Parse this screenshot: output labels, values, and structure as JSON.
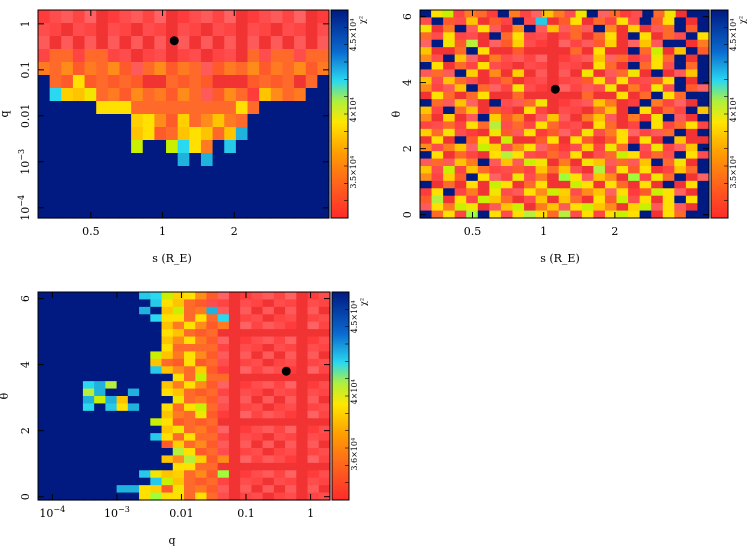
{
  "chart_data": [
    {
      "type": "heatmap",
      "id": "s-q",
      "title": "",
      "xlabel": "s (R_E)",
      "ylabel": "q",
      "xscale": "log",
      "yscale": "log",
      "xlim": [
        0.3,
        5.0
      ],
      "ylim": [
        6e-05,
        2.0
      ],
      "xticks": [
        {
          "value": 0.5,
          "label": "0.5"
        },
        {
          "value": 1,
          "label": "1"
        },
        {
          "value": 2,
          "label": "2"
        }
      ],
      "yticks": [
        {
          "value": 0.0001,
          "base": "10",
          "exp": "−4"
        },
        {
          "value": 0.001,
          "base": "10",
          "exp": "−3"
        },
        {
          "value": 0.01,
          "label": "0.01"
        },
        {
          "value": 0.1,
          "label": "0.1"
        },
        {
          "value": 1,
          "label": "1"
        }
      ],
      "best_fit": {
        "x": 1.12,
        "y": 0.43
      },
      "colorbar": {
        "label": "χ²",
        "ticks": [
          "3.5×10⁴",
          "4×10⁴",
          "4.5×10⁴"
        ]
      },
      "grid_rows_top_to_bottom": [
        "RRRRRRRRRRRRRRRRRRRRRRRRR",
        "RRRRRRRRRRRRRRRRRRRRRRRRR",
        "RRRRRRRRRRRRRRRRRRRRRRRRR",
        "ROOROORRRRRRRRRRRROROOROO",
        "OOOOOOOOROOOOOROOOOOOOOOO",
        "BOOYOOOOORROOOORRROOOOROB",
        "BCYYYOOOOOOOOOROOORYOOOBB",
        "BBBBBYYYOOOOOOOOOYOBBBBBB",
        "BBBBBBBBYYOOYOOYOOBBBBBBB",
        "BBBBBBBBYYOOYYYOYCBBBBBBB",
        "BBBBBBBBGBBGCYOBCBBBBBBBB",
        "BBBBBBBBBBBBCBCBBBBBBBBBB",
        "BBBBBBBBBBBBBBBBBBBBBBBBB",
        "BBBBBBBBBBBBBBBBBBBBBBBBB",
        "BBBBBBBBBBBBBBBBBBBBBBBBB",
        "BBBBBBBBBBBBBBBBBBBBBBBBB"
      ]
    },
    {
      "type": "heatmap",
      "id": "s-theta",
      "title": "",
      "xlabel": "s (R_E)",
      "ylabel": "θ",
      "xscale": "log",
      "yscale": "linear",
      "xlim": [
        0.3,
        5.0
      ],
      "ylim": [
        -0.1,
        6.2
      ],
      "xticks": [
        {
          "value": 0.5,
          "label": "0.5"
        },
        {
          "value": 1,
          "label": "1"
        },
        {
          "value": 2,
          "label": "2"
        }
      ],
      "yticks": [
        {
          "value": 0,
          "label": "0"
        },
        {
          "value": 2,
          "label": "2"
        },
        {
          "value": 4,
          "label": "4"
        },
        {
          "value": 6,
          "label": "6"
        }
      ],
      "best_fit": {
        "x": 1.12,
        "y": 3.8
      },
      "colorbar": {
        "label": "χ²",
        "ticks": [
          "3.5×10⁴",
          "4×10⁴",
          "4.5×10⁴"
        ]
      },
      "grid_rows_top_to_bottom": [
        "BYGROORBORRYORYBRORRBOYRBB",
        "RBORYRORBRCROYRORYRBOYBRB",
        "YROBRYRROBRYRORBORYRROBOB",
        "ORYRRRBOYRRRROROYRBYRORBY",
        "RBYOGRROYRRRRRROYRRYRBBRO",
        "YRROBYRRORRRRORYRRBOGRYBO",
        "ORBYRRORRRRRRRRYRORRYOBRB",
        "BYRORYRRRRRRRRRYORBOYRBOB",
        "RORBYRORYRRRRRYRROYRBRRYB",
        "YRYORRRORRRRRROYRYRROYBRB",
        "ORRYBORRYRRRRRRRYRORYRBOR",
        "RYOROYRRORRRRRORRYROBYOBB",
        "BORYRRBRROYRRRRYORRBORRRB",
        "YRBOYRORRYRRRRROYRBYRORBY",
        "ORYRRBYOORRYRROYRRORYBRRB",
        "RRORYOGRORYORRRYORRBYROYR",
        "YOYRRRYORYRORRYROYRRROBRB",
        "RYRBOYRGRROYRYOROYRYRBYRR",
        "OROYRGYROYRORRYRYOBRYRRYB",
        "BYRORRYGYRRORYRROGYRORBYR",
        "RORYOBRYRGYRORYYRORYBOYRB",
        "YRGRYORRORYOYRRGRYOYRRYOB",
        "ORYOBYRRYRORGYRYORGRYOBRR",
        "BRORYRGYROYRRGYRYORYRBRYB",
        "RYBRORYRRYOGYROYRYROGYRRB",
        "OGRYRGYORRYRYORYOGRYRYBYB",
        "RYOGYRRYGROYRYGYORYGRYRRB",
        "BOYRGBYRYGYOGRYRYGYBRYOBB"
      ]
    },
    {
      "type": "heatmap",
      "id": "q-theta",
      "title": "",
      "xlabel": "q",
      "ylabel": "θ",
      "xscale": "log",
      "yscale": "linear",
      "xlim": [
        6e-05,
        2.0
      ],
      "ylim": [
        -0.1,
        6.2
      ],
      "xticks": [
        {
          "value": 0.0001,
          "base": "10",
          "exp": "−4"
        },
        {
          "value": 0.001,
          "base": "10",
          "exp": "−3"
        },
        {
          "value": 0.01,
          "label": "0.01"
        },
        {
          "value": 0.1,
          "label": "0.1"
        },
        {
          "value": 1,
          "label": "1"
        }
      ],
      "yticks": [
        {
          "value": 0,
          "label": "0"
        },
        {
          "value": 2,
          "label": "2"
        },
        {
          "value": 4,
          "label": "4"
        },
        {
          "value": 6,
          "label": "6"
        }
      ],
      "best_fit": {
        "x": 0.42,
        "y": 3.8
      },
      "colorbar": {
        "label": "χ²",
        "ticks": [
          "3.6×10⁴",
          "4×10⁴",
          "4.5×10⁴"
        ]
      },
      "grid_rows_top_to_bottom": [
        "BBBBBBBBBCCGYYOORRRRRRRRRR",
        "BBBBBBBBBBCYYOORRRRRRRRRRR",
        "BBBBBBBBBCBYGOOCRRRRRRRRRR",
        "BBBBBBBBBBCYYOYOCRRRRRRRRR",
        "BBBBBBBBBBBYOYOOORRRRRRRRR",
        "BBBBBBBBBBBYYOOORRRRRRRRRR",
        "BBBBBBBBBBBYOYOORRRRRRRRRR",
        "BBBBBBBBBBBYOOOORRRRRRRRRR",
        "BBBBBBBBBBGYOYOORRRRRRRRRR",
        "BBBBBBBBBBYOOYOORRRRRRRRRR",
        "BBBBBBBBBBCYOOYORRRRRRRRRR",
        "BBBBBBBBBBBBYOGOORRRRRRRRR",
        "BBBBCCGBBBBYOYOORRRRRRRRRR",
        "BBBBGCBBCBBYYOOORRRRRRRRRR",
        "BBBBCGCYBBBBYOOORRRRRRRRRR",
        "BBBBCBCYCBBYOYGORRRRRRRRRR",
        "BBBBBBBBBBBYOOYORRRRRRRRRR",
        "BBBBBBBBBBGYOOOORRRRRRRRRR",
        "BBBBBBBBBBBYYOOORRRRRRRRRR",
        "BBBBBBBBBBCYOYOORRRRRRRRRR",
        "BBBBBBBBBBBOYOOORRRRRRRRRR",
        "BBBBBBBBBBBBGYOORRRRRRRRRR",
        "BBBBBBBBBBBYOGYOORRRRRRRRR",
        "BBBBBBBBBBBBYYOORRRRRRRRRR",
        "BBBBBBBBBCYYYOOOGRRRRRRRRR",
        "BBBBBBBBBBCGYOOORRRRRRRRRR",
        "BBBBBBBCCYYOYOOORRRRRRRRRR",
        "BBBBBBBBBYGYYOYORRRRRRRRRR"
      ]
    }
  ]
}
